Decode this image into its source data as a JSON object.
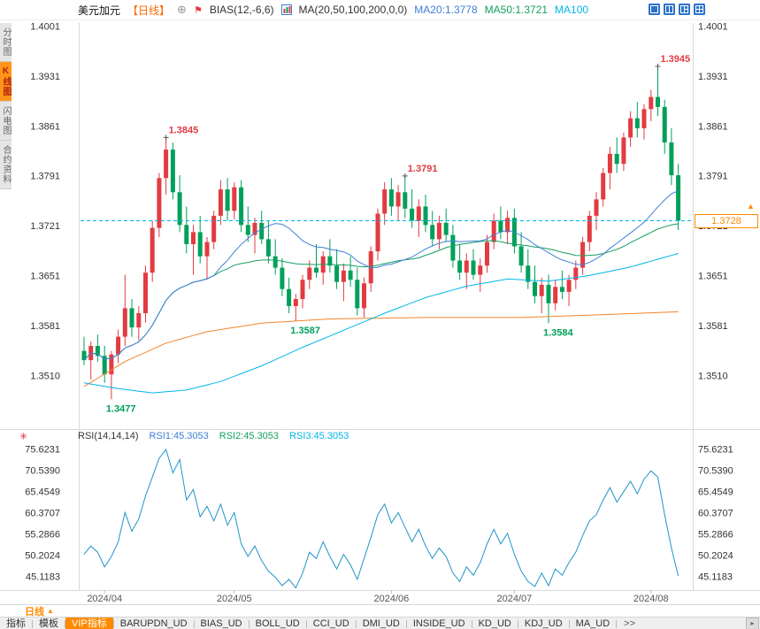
{
  "header": {
    "symbol": "美元加元",
    "period_tag": "【日线】",
    "bias_label": "BIAS(12,-6,6)",
    "ma_label": "MA(20,50,100,200,0,0)",
    "ma20": "MA20:1.3778",
    "ma50": "MA50:1.3721",
    "ma100": "MA100"
  },
  "icons": {
    "add": "⊕",
    "pin": "⚑",
    "settings": "✳",
    "dropdown_up": "▲",
    "tag_arrow": "▲",
    "scroll_right": "▸"
  },
  "sidebar": {
    "items": [
      {
        "label": "分时图",
        "name": "timeshare",
        "selected": false
      },
      {
        "label": "K线图",
        "name": "kline",
        "selected": true
      },
      {
        "label": "闪电图",
        "name": "flash",
        "selected": false
      },
      {
        "label": "合约资料",
        "name": "contract-info",
        "selected": false
      }
    ]
  },
  "rsi_header": {
    "label": "RSI(14,14,14)",
    "rsi1": "RSI1:45.3053",
    "rsi2": "RSI2:45.3053",
    "rsi3": "RSI3:45.3053"
  },
  "footer": {
    "period_label": "日线",
    "left_tabs": [
      {
        "label": "指标",
        "name": "indicators",
        "selected": false
      },
      {
        "label": "模板",
        "name": "templates",
        "selected": false
      },
      {
        "label": "VIP指标",
        "name": "vip-indicators",
        "selected": true
      }
    ],
    "indicator_tabs": [
      "BARUPDN_UD",
      "BIAS_UD",
      "BOLL_UD",
      "CCI_UD",
      "DMI_UD",
      "INSIDE_UD",
      "KD_UD",
      "KDJ_UD",
      "MA_UD"
    ],
    "more_label": ">>"
  },
  "colors": {
    "up": "#e23b41",
    "down": "#00a05a",
    "ma20": "#3f7fd6",
    "ma50": "#14a05f",
    "ma100": "#00b7e8",
    "ma200": "#f0862a",
    "rsi_line": "#2094c8",
    "dashed": "#00b7e8",
    "tag": "#ff8a00"
  },
  "chart_data": {
    "type": "candlestick",
    "title": "美元加元 日线",
    "price_axis_labels": [
      "1.4001",
      "1.3931",
      "1.3861",
      "1.3791",
      "1.3721",
      "1.3651",
      "1.3581",
      "1.3510"
    ],
    "price_ylim": [
      1.351,
      1.4001
    ],
    "x_tick_labels": [
      "2024/04",
      "2024/05",
      "2024/06",
      "2024/07",
      "2024/08"
    ],
    "x_tick_indices": [
      3,
      22,
      45,
      63,
      83
    ],
    "last_price_label": "1.3728",
    "annotations": [
      {
        "text": "1.3845",
        "index": 12,
        "kind": "high"
      },
      {
        "text": "1.3945",
        "index": 84,
        "kind": "high"
      },
      {
        "text": "1.3791",
        "index": 47,
        "kind": "high"
      },
      {
        "text": "1.3587",
        "index": 31,
        "kind": "low"
      },
      {
        "text": "1.3584",
        "index": 68,
        "kind": "low"
      },
      {
        "text": "1.3477",
        "index": 4,
        "kind": "low"
      }
    ],
    "candles": [
      [
        1.3545,
        1.3565,
        1.3525,
        1.3532
      ],
      [
        1.3532,
        1.3558,
        1.3505,
        1.3552
      ],
      [
        1.3552,
        1.3568,
        1.353,
        1.3538
      ],
      [
        1.3538,
        1.3552,
        1.35,
        1.3512
      ],
      [
        1.3512,
        1.3545,
        1.3477,
        1.354
      ],
      [
        1.354,
        1.3575,
        1.3528,
        1.3565
      ],
      [
        1.3565,
        1.3652,
        1.3552,
        1.3605
      ],
      [
        1.3605,
        1.3618,
        1.3565,
        1.3578
      ],
      [
        1.3578,
        1.3608,
        1.356,
        1.3598
      ],
      [
        1.3598,
        1.3665,
        1.3585,
        1.3655
      ],
      [
        1.3655,
        1.3728,
        1.3642,
        1.3718
      ],
      [
        1.3718,
        1.3795,
        1.3705,
        1.3788
      ],
      [
        1.3788,
        1.3845,
        1.3765,
        1.3828
      ],
      [
        1.3828,
        1.3838,
        1.3758,
        1.3768
      ],
      [
        1.3768,
        1.3792,
        1.3712,
        1.3722
      ],
      [
        1.3722,
        1.3748,
        1.3682,
        1.3695
      ],
      [
        1.3695,
        1.3722,
        1.3652,
        1.3712
      ],
      [
        1.3712,
        1.3735,
        1.3668,
        1.3678
      ],
      [
        1.3678,
        1.3705,
        1.3645,
        1.3698
      ],
      [
        1.3698,
        1.3742,
        1.3688,
        1.3735
      ],
      [
        1.3735,
        1.3785,
        1.3722,
        1.3772
      ],
      [
        1.3772,
        1.3788,
        1.3728,
        1.3742
      ],
      [
        1.3742,
        1.3782,
        1.373,
        1.3775
      ],
      [
        1.3775,
        1.3785,
        1.3712,
        1.3722
      ],
      [
        1.3722,
        1.3748,
        1.3698,
        1.3708
      ],
      [
        1.3708,
        1.3732,
        1.3682,
        1.3725
      ],
      [
        1.3725,
        1.3742,
        1.3695,
        1.3702
      ],
      [
        1.3702,
        1.3728,
        1.3668,
        1.3678
      ],
      [
        1.3678,
        1.3702,
        1.3652,
        1.3662
      ],
      [
        1.3662,
        1.3675,
        1.3622,
        1.3632
      ],
      [
        1.3632,
        1.3648,
        1.3598,
        1.3608
      ],
      [
        1.3608,
        1.3625,
        1.3587,
        1.3618
      ],
      [
        1.3618,
        1.3652,
        1.3605,
        1.3645
      ],
      [
        1.3645,
        1.3672,
        1.3632,
        1.3662
      ],
      [
        1.3662,
        1.3695,
        1.3648,
        1.3655
      ],
      [
        1.3655,
        1.3685,
        1.3638,
        1.3678
      ],
      [
        1.3678,
        1.3702,
        1.3655,
        1.3665
      ],
      [
        1.3665,
        1.3688,
        1.3632,
        1.3642
      ],
      [
        1.3642,
        1.3668,
        1.3615,
        1.3658
      ],
      [
        1.3658,
        1.3678,
        1.3635,
        1.3645
      ],
      [
        1.3645,
        1.3662,
        1.3595,
        1.3605
      ],
      [
        1.3605,
        1.3648,
        1.3592,
        1.364
      ],
      [
        1.364,
        1.3692,
        1.3628,
        1.3685
      ],
      [
        1.3685,
        1.3745,
        1.3672,
        1.3738
      ],
      [
        1.3738,
        1.3782,
        1.3722,
        1.3772
      ],
      [
        1.3772,
        1.3788,
        1.3735,
        1.3748
      ],
      [
        1.3748,
        1.3778,
        1.3728,
        1.3768
      ],
      [
        1.3768,
        1.3791,
        1.3732,
        1.3745
      ],
      [
        1.3745,
        1.3772,
        1.3718,
        1.3728
      ],
      [
        1.3728,
        1.3758,
        1.3705,
        1.3748
      ],
      [
        1.3748,
        1.3765,
        1.3712,
        1.3722
      ],
      [
        1.3722,
        1.3742,
        1.3692,
        1.3702
      ],
      [
        1.3702,
        1.3735,
        1.3688,
        1.3725
      ],
      [
        1.3725,
        1.3745,
        1.3698,
        1.3708
      ],
      [
        1.3708,
        1.3722,
        1.3662,
        1.3672
      ],
      [
        1.3672,
        1.3695,
        1.3645,
        1.3655
      ],
      [
        1.3655,
        1.3682,
        1.3632,
        1.3672
      ],
      [
        1.3672,
        1.3688,
        1.3645,
        1.3652
      ],
      [
        1.3652,
        1.3675,
        1.3628,
        1.3665
      ],
      [
        1.3665,
        1.3708,
        1.3655,
        1.3698
      ],
      [
        1.3698,
        1.3738,
        1.3688,
        1.3728
      ],
      [
        1.3728,
        1.3748,
        1.3702,
        1.3712
      ],
      [
        1.3712,
        1.3742,
        1.3695,
        1.3732
      ],
      [
        1.3732,
        1.3745,
        1.3682,
        1.3692
      ],
      [
        1.3692,
        1.3712,
        1.3655,
        1.3665
      ],
      [
        1.3665,
        1.3688,
        1.3632,
        1.3642
      ],
      [
        1.3642,
        1.3665,
        1.3612,
        1.3622
      ],
      [
        1.3622,
        1.3648,
        1.3598,
        1.3638
      ],
      [
        1.3638,
        1.3652,
        1.3584,
        1.3612
      ],
      [
        1.3612,
        1.3645,
        1.3602,
        1.3635
      ],
      [
        1.3635,
        1.3658,
        1.3618,
        1.3628
      ],
      [
        1.3628,
        1.3652,
        1.3608,
        1.3645
      ],
      [
        1.3645,
        1.3672,
        1.3632,
        1.3662
      ],
      [
        1.3662,
        1.3705,
        1.3652,
        1.3698
      ],
      [
        1.3698,
        1.3742,
        1.3685,
        1.3735
      ],
      [
        1.3735,
        1.3768,
        1.3715,
        1.3758
      ],
      [
        1.3758,
        1.3802,
        1.3748,
        1.3795
      ],
      [
        1.3795,
        1.3832,
        1.3772,
        1.3822
      ],
      [
        1.3822,
        1.3845,
        1.3795,
        1.3808
      ],
      [
        1.3808,
        1.3852,
        1.3798,
        1.3845
      ],
      [
        1.3845,
        1.3882,
        1.3832,
        1.3872
      ],
      [
        1.3872,
        1.3895,
        1.3845,
        1.3858
      ],
      [
        1.3858,
        1.3892,
        1.3842,
        1.3885
      ],
      [
        1.3885,
        1.3912,
        1.3868,
        1.3902
      ],
      [
        1.3902,
        1.3945,
        1.3875,
        1.3888
      ],
      [
        1.3888,
        1.3898,
        1.3822,
        1.3838
      ],
      [
        1.3838,
        1.3858,
        1.3778,
        1.3792
      ],
      [
        1.3792,
        1.3808,
        1.3715,
        1.3728
      ]
    ],
    "ma100_ctrl": [
      [
        0,
        1.35
      ],
      [
        5,
        1.3492
      ],
      [
        10,
        1.3486
      ],
      [
        15,
        1.349
      ],
      [
        20,
        1.3502
      ],
      [
        26,
        1.3524
      ],
      [
        32,
        1.355
      ],
      [
        38,
        1.3574
      ],
      [
        44,
        1.3598
      ],
      [
        50,
        1.362
      ],
      [
        56,
        1.3636
      ],
      [
        62,
        1.3646
      ],
      [
        68,
        1.3643
      ],
      [
        74,
        1.3651
      ],
      [
        80,
        1.3663
      ],
      [
        87,
        1.3682
      ]
    ],
    "ma200_ctrl": [
      [
        0,
        1.3495
      ],
      [
        6,
        1.353
      ],
      [
        12,
        1.3556
      ],
      [
        18,
        1.3572
      ],
      [
        26,
        1.3584
      ],
      [
        36,
        1.359
      ],
      [
        50,
        1.3592
      ],
      [
        64,
        1.3592
      ],
      [
        76,
        1.3596
      ],
      [
        87,
        1.36
      ]
    ],
    "rsi": {
      "axis_labels": [
        "75.6231",
        "70.5390",
        "65.4549",
        "60.3707",
        "55.2866",
        "50.2024",
        "45.1183"
      ],
      "ylim": [
        45.1183,
        75.6231
      ],
      "values": [
        50.5,
        52.5,
        51,
        47.5,
        50,
        53.5,
        60.5,
        56,
        59,
        64.5,
        69,
        73.5,
        75.6,
        70,
        73.2,
        63.5,
        66,
        59.5,
        62,
        58.5,
        62.5,
        57.5,
        60.5,
        53,
        50,
        52.5,
        49,
        46.5,
        45,
        43,
        44.5,
        42.5,
        46,
        51,
        49.5,
        53.5,
        50,
        47,
        50.5,
        48,
        44.5,
        49.5,
        54.5,
        60,
        62.5,
        58,
        60.5,
        57,
        53.5,
        56.5,
        52.5,
        49.5,
        52,
        50,
        46,
        44,
        47.5,
        45.5,
        48.5,
        53,
        56.5,
        53,
        55.5,
        50.5,
        46.5,
        44,
        42.8,
        46,
        43,
        47,
        45.5,
        48.5,
        51,
        55,
        58.5,
        60,
        63.5,
        66.5,
        63,
        65.5,
        68,
        65,
        68.5,
        70.5,
        69,
        60,
        52,
        45.3
      ]
    }
  }
}
